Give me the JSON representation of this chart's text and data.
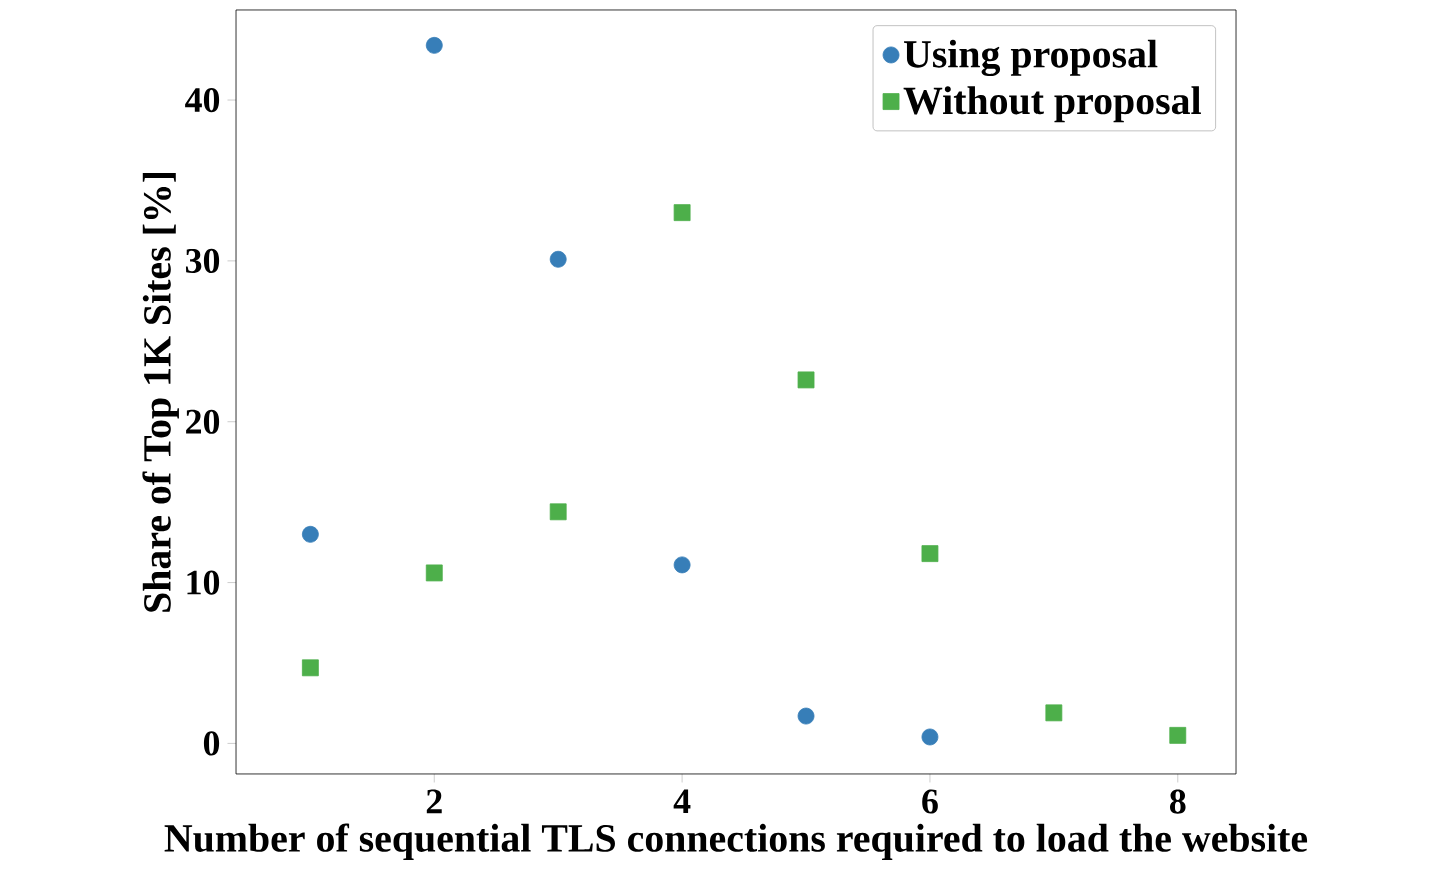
{
  "chart_data": {
    "type": "scatter",
    "xlabel": "Number of sequential TLS connections required to load the website",
    "ylabel": "Share of Top 1K Sites [%]",
    "x": [
      1,
      2,
      3,
      4,
      5,
      6,
      7,
      8
    ],
    "series": [
      {
        "name": "Using proposal",
        "color": "#377eb8",
        "marker": "circle",
        "values": [
          13.0,
          43.4,
          30.1,
          11.1,
          1.7,
          0.4,
          null,
          null
        ]
      },
      {
        "name": "Without proposal",
        "color": "#4daf4a",
        "marker": "square",
        "values": [
          4.7,
          10.6,
          14.4,
          33.0,
          22.6,
          11.8,
          1.9,
          0.5
        ]
      }
    ],
    "xlim": [
      0.4,
      8.47
    ],
    "ylim": [
      -1.9,
      45.6
    ],
    "xticks": [
      2,
      4,
      6,
      8
    ],
    "yticks": [
      0,
      10,
      20,
      30,
      40
    ],
    "legend": "top right",
    "grid": false
  }
}
